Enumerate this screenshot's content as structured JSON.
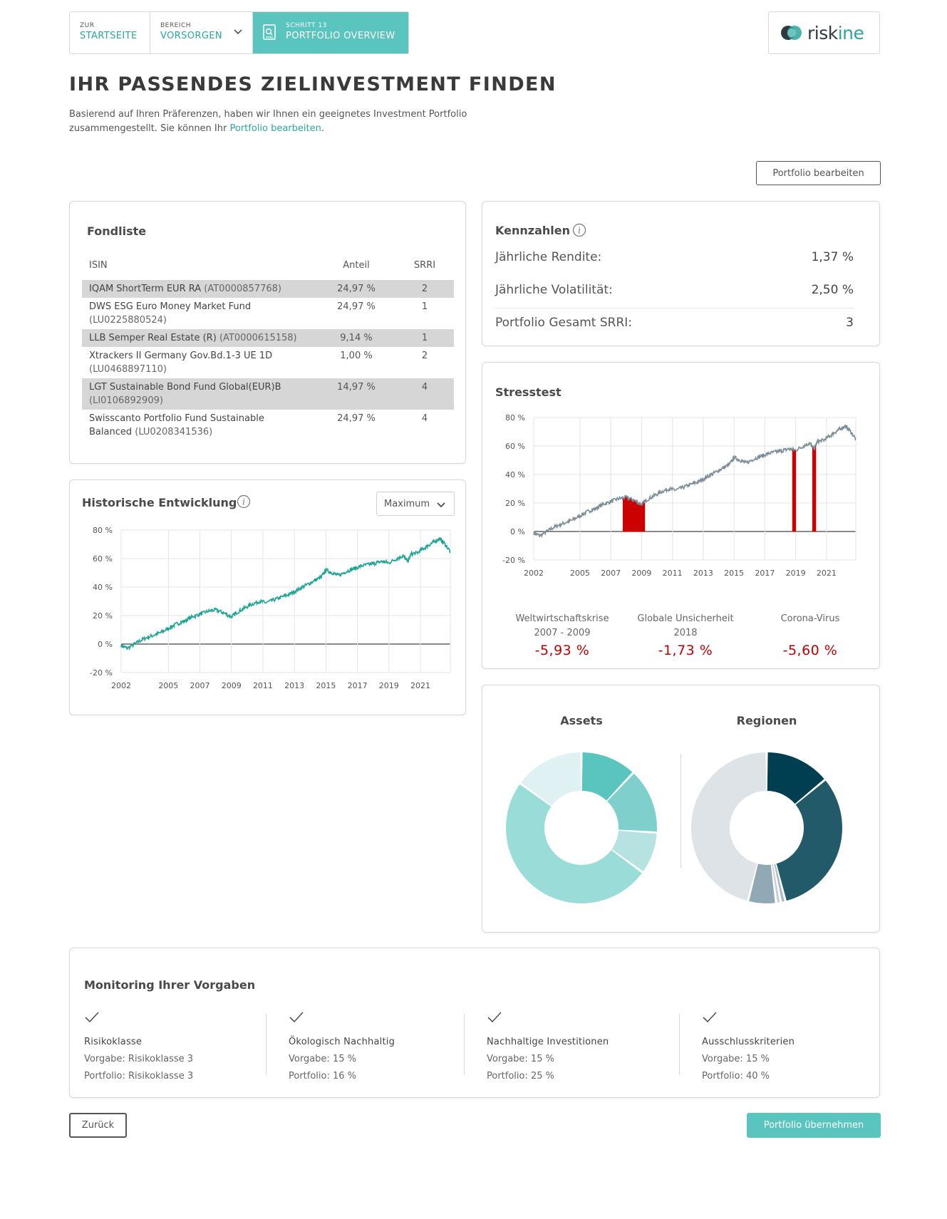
{
  "nav": {
    "home": {
      "small": "ZUR",
      "big": "STARTSEITE"
    },
    "area": {
      "small": "BEREICH",
      "big": "VORSORGEN"
    },
    "step": {
      "small": "SCHRITT 13",
      "big": "PORTFOLIO OVERVIEW"
    }
  },
  "logo": {
    "prefix": "risk",
    "suffix": "ine"
  },
  "page": {
    "title": "IHR PASSENDES ZIELINVESTMENT FINDEN",
    "intro": "Basierend auf Ihren Präferenzen, haben wir Ihnen ein geeignetes Investment Portfolio zusammengestellt. Sie können Ihr ",
    "intro_link": "Portfolio bearbeiten",
    "intro_end": ".",
    "edit_button": "Portfolio bearbeiten"
  },
  "fondliste": {
    "title": "Fondliste",
    "headers": {
      "isin": "ISIN",
      "share": "Anteil",
      "srri": "SRRI"
    },
    "rows": [
      {
        "name": "IQAM ShortTerm EUR RA",
        "isin": "(AT0000857768)",
        "share": "24,97 %",
        "srri": "2"
      },
      {
        "name": "DWS ESG Euro Money Market Fund",
        "isin": "(LU0225880524)",
        "share": "24,97 %",
        "srri": "1"
      },
      {
        "name": "LLB Semper Real Estate (R)",
        "isin": "(AT0000615158)",
        "share": "9,14 %",
        "srri": "1"
      },
      {
        "name": "Xtrackers II Germany Gov.Bd.1-3 UE 1D",
        "isin": "(LU0468897110)",
        "share": "1,00 %",
        "srri": "2"
      },
      {
        "name": "LGT Sustainable Bond Fund Global(EUR)B",
        "isin": "(LI0106892909)",
        "share": "14,97 %",
        "srri": "4"
      },
      {
        "name": "Swisscanto Portfolio Fund Sustainable Balanced",
        "isin": "(LU0208341536)",
        "share": "24,97 %",
        "srri": "4"
      }
    ]
  },
  "kennzahlen": {
    "title": "Kennzahlen",
    "rows": [
      {
        "label": "Jährliche Rendite:",
        "value": "1,37 %"
      },
      {
        "label": "Jährliche Volatilität:",
        "value": "2,50 %"
      },
      {
        "label": "Portfolio Gesamt SRRI:",
        "value": "3"
      }
    ]
  },
  "stresstest": {
    "title": "Stresstest",
    "scenarios": [
      {
        "label1": "Weltwirtschaftskrise",
        "label2": "2007 - 2009",
        "value": "-5,93 %"
      },
      {
        "label1": "Globale Unsicherheit",
        "label2": "2018",
        "value": "-1,73 %"
      },
      {
        "label1": "Corona-Virus",
        "label2": "",
        "value": "-5,60 %"
      }
    ],
    "highlight_color": "#cc0000",
    "line_color": "#7b8d96"
  },
  "historisch": {
    "title": "Historische Entwicklung",
    "dropdown_value": "Maximum",
    "line_color": "#1fa596"
  },
  "chart_data": [
    {
      "type": "line",
      "title": "Historische Entwicklung",
      "x_ticks": [
        "2002",
        "2005",
        "2007",
        "2009",
        "2011",
        "2013",
        "2015",
        "2017",
        "2019",
        "2021"
      ],
      "y_ticks": [
        "80 %",
        "60 %",
        "40 %",
        "20 %",
        "0 %",
        "-20 %"
      ],
      "ylim": [
        -20,
        80
      ],
      "xlim": [
        2002.0,
        2022.9
      ],
      "grid": true,
      "series": [
        {
          "x": [
            2002.0,
            2002.4,
            2003.0,
            2003.5,
            2004.0,
            2004.5,
            2005.0,
            2005.5,
            2006.0,
            2006.5,
            2007.0,
            2007.5,
            2008.0,
            2008.5,
            2009.0,
            2009.3,
            2009.8,
            2010.3,
            2010.8,
            2011.2,
            2011.7,
            2012.2,
            2012.7,
            2013.2,
            2013.7,
            2014.2,
            2014.7,
            2015.0,
            2015.4,
            2015.8,
            2016.3,
            2016.8,
            2017.3,
            2017.8,
            2018.2,
            2018.6,
            2019.0,
            2019.5,
            2019.9,
            2020.2,
            2020.4,
            2020.8,
            2021.2,
            2021.6,
            2021.9,
            2022.2,
            2022.5,
            2022.9
          ],
          "y": [
            -1,
            -3,
            1,
            4,
            6,
            8,
            11,
            14,
            16,
            19,
            21,
            23,
            24,
            22,
            19,
            22,
            25,
            28,
            30,
            29,
            31,
            33,
            35,
            38,
            41,
            44,
            47,
            52,
            50,
            48,
            51,
            53,
            55,
            56,
            57,
            58,
            57,
            60,
            62,
            58,
            63,
            64,
            67,
            70,
            72,
            74,
            71,
            65
          ]
        }
      ]
    },
    {
      "type": "line",
      "title": "Stresstest",
      "x_ticks": [
        "2002",
        "2005",
        "2007",
        "2009",
        "2011",
        "2013",
        "2015",
        "2017",
        "2019",
        "2021"
      ],
      "y_ticks": [
        "80 %",
        "60 %",
        "40 %",
        "20 %",
        "0 %",
        "-20 %"
      ],
      "ylim": [
        -20,
        80
      ],
      "xlim": [
        2002.0,
        2022.9
      ],
      "grid": true,
      "series": [
        {
          "x": [
            2002.0,
            2002.4,
            2003.0,
            2003.5,
            2004.0,
            2004.5,
            2005.0,
            2005.5,
            2006.0,
            2006.5,
            2007.0,
            2007.5,
            2008.0,
            2008.5,
            2009.0,
            2009.3,
            2009.8,
            2010.3,
            2010.8,
            2011.2,
            2011.7,
            2012.2,
            2012.7,
            2013.2,
            2013.7,
            2014.2,
            2014.7,
            2015.0,
            2015.4,
            2015.8,
            2016.3,
            2016.8,
            2017.3,
            2017.8,
            2018.2,
            2018.6,
            2019.0,
            2019.5,
            2019.9,
            2020.2,
            2020.4,
            2020.8,
            2021.2,
            2021.6,
            2021.9,
            2022.2,
            2022.5,
            2022.9
          ],
          "y": [
            -1,
            -3,
            1,
            4,
            6,
            8,
            11,
            14,
            16,
            19,
            21,
            23,
            24,
            22,
            19,
            22,
            25,
            28,
            30,
            29,
            31,
            33,
            35,
            38,
            41,
            44,
            47,
            52,
            50,
            48,
            51,
            53,
            55,
            56,
            57,
            58,
            57,
            60,
            62,
            58,
            63,
            64,
            67,
            70,
            72,
            74,
            71,
            65
          ]
        }
      ],
      "stress_periods": [
        [
          2007.8,
          2009.2
        ],
        [
          2018.8,
          2019.0
        ],
        [
          2020.1,
          2020.3
        ]
      ]
    },
    {
      "type": "pie",
      "title": "Assets",
      "values": [
        12,
        14,
        9,
        50,
        15
      ],
      "colors": [
        "#5ac4bf",
        "#7fd0cc",
        "#b6e3e1",
        "#9adcd8",
        "#dff1f2"
      ]
    },
    {
      "type": "pie",
      "title": "Regionen",
      "values": [
        14,
        32,
        1,
        1,
        6,
        46
      ],
      "colors": [
        "#003f52",
        "#235a6a",
        "#a9b9c2",
        "#c6d2d8",
        "#91a9b5",
        "#dde3e6"
      ]
    }
  ],
  "donuts": {
    "assets_title": "Assets",
    "regions_title": "Regionen"
  },
  "monitoring": {
    "title": "Monitoring Ihrer Vorgaben",
    "items": [
      {
        "title": "Risikoklasse",
        "target": "Vorgabe: Risikoklasse 3",
        "actual": "Portfolio: Risikoklasse 3"
      },
      {
        "title": "Ökologisch Nachhaltig",
        "target": "Vorgabe: 15 %",
        "actual": "Portfolio: 16 %"
      },
      {
        "title": "Nachhaltige Investitionen",
        "target": "Vorgabe: 15 %",
        "actual": "Portfolio: 25 %"
      },
      {
        "title": "Ausschlusskriterien",
        "target": "Vorgabe: 15 %",
        "actual": "Portfolio: 40 %"
      }
    ]
  },
  "footer": {
    "back": "Zurück",
    "accept": "Portfolio übernehmen"
  }
}
